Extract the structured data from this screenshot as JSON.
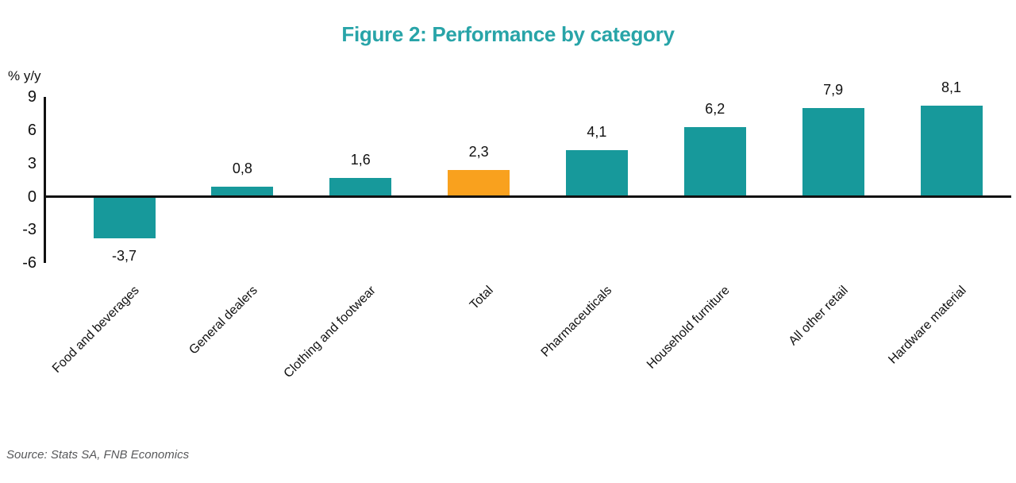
{
  "chart": {
    "title": "Figure 2: Performance by category",
    "y_unit": "% y/y",
    "source": "Source: Stats SA, FNB Economics"
  },
  "chart_data": {
    "type": "bar",
    "title": "Figure 2: Performance by category",
    "ylabel": "% y/y",
    "categories": [
      "Food and beverages",
      "General dealers",
      "Clothing and footwear",
      "Total",
      "Pharmaceuticals",
      "Household furniture",
      "All other retail",
      "Hardware material"
    ],
    "values": [
      -3.7,
      0.8,
      1.6,
      2.3,
      4.1,
      6.2,
      7.9,
      8.1
    ],
    "value_labels": [
      "-3,7",
      "0,8",
      "1,6",
      "2,3",
      "4,1",
      "6,2",
      "7,9",
      "8,1"
    ],
    "yticks": [
      9,
      6,
      3,
      0,
      -3,
      -6
    ],
    "ylim": [
      -6,
      9
    ],
    "grid": false,
    "legend": false,
    "bar_color": "#17999B",
    "highlight_color": "#F9A11E",
    "highlight_category": "Total",
    "title_color": "#28A4A8",
    "source": "Source: Stats SA, FNB Economics"
  }
}
